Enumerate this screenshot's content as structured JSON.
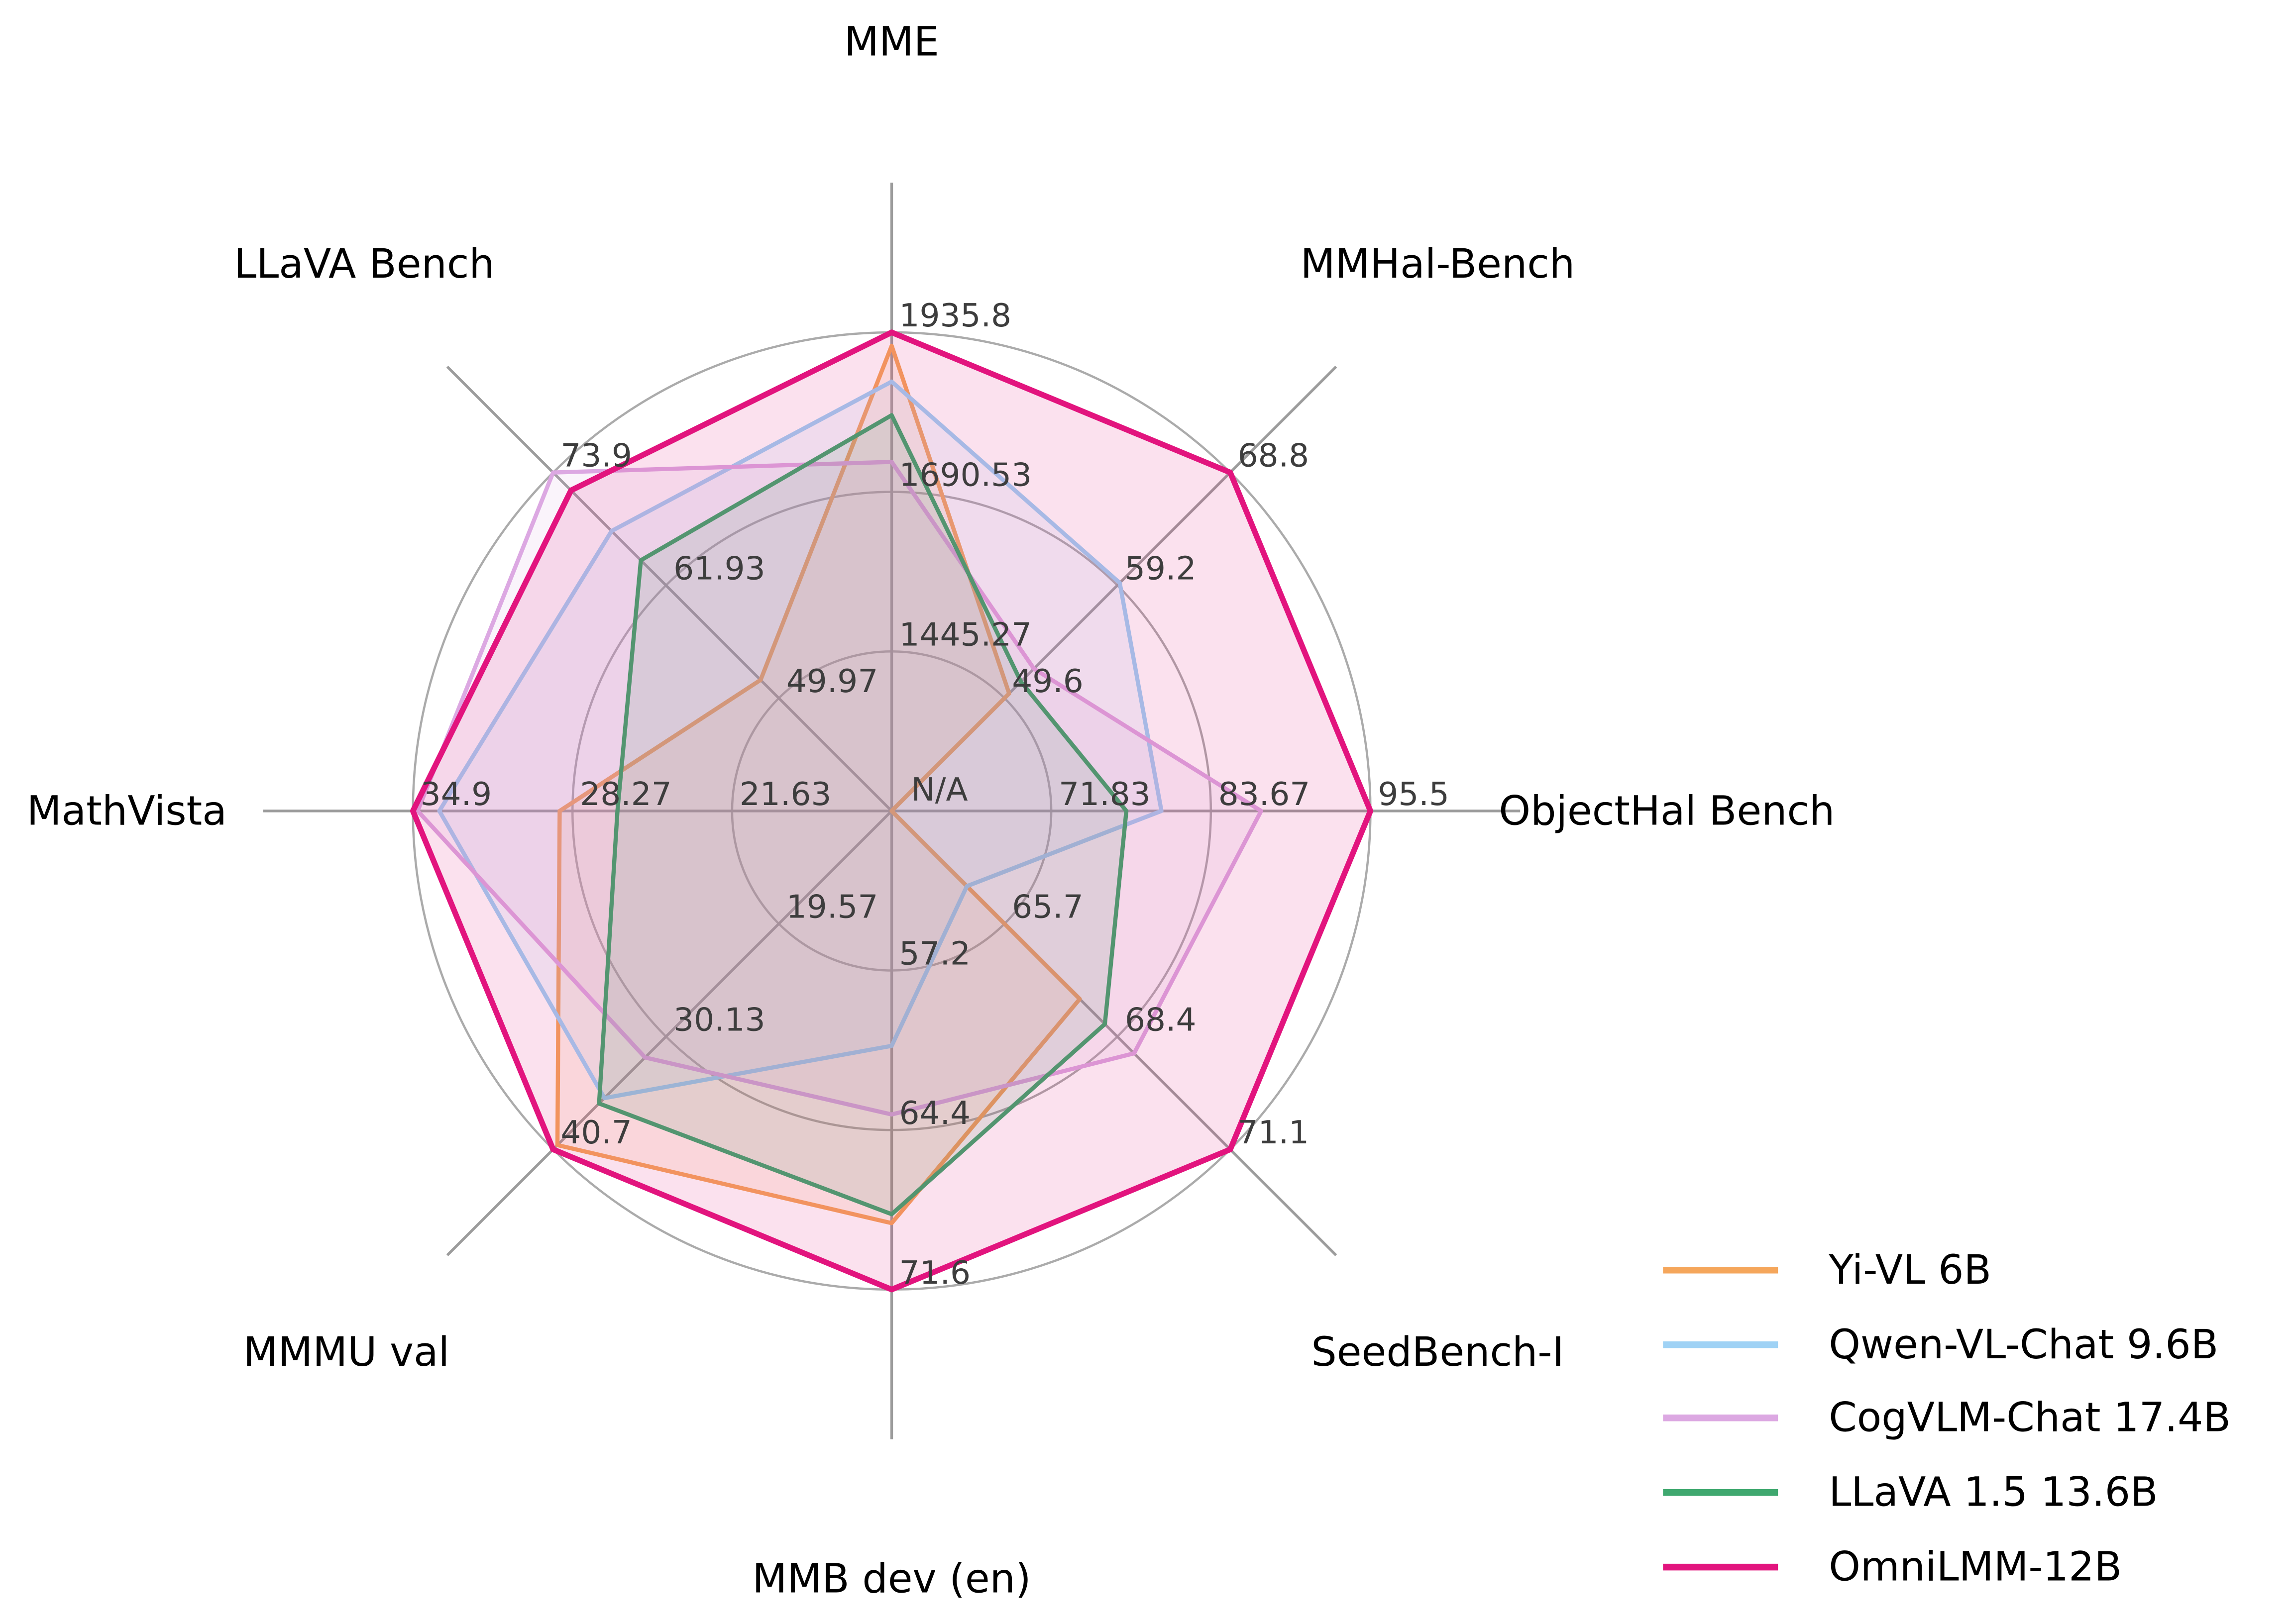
{
  "chart_data": {
    "type": "radar",
    "title": "",
    "grid": {
      "rings": 3,
      "ring_color": "#ababab",
      "spoke_color": "#9c9c9c",
      "tick_color": "#3d3d3d",
      "fill_opacity": 0.13
    },
    "axes": [
      {
        "label": "MME",
        "min": 1200,
        "max": 1935.8,
        "tick_labels": [
          "1445.27",
          "1690.53",
          "1935.8"
        ]
      },
      {
        "label": "MMHal-Bench",
        "min": 40,
        "max": 68.8,
        "tick_labels": [
          "49.6",
          "59.2",
          "68.8"
        ]
      },
      {
        "label": "ObjectHal Bench",
        "min": 60,
        "max": 95.5,
        "tick_labels": [
          "71.83",
          "83.67",
          "95.5"
        ],
        "center_label": "N/A"
      },
      {
        "label": "SeedBench-I",
        "min": 63,
        "max": 71.1,
        "tick_labels": [
          "65.7",
          "68.4",
          "71.1"
        ]
      },
      {
        "label": "MMB dev (en)",
        "min": 50,
        "max": 71.6,
        "tick_labels": [
          "57.2",
          "64.4",
          "71.6"
        ]
      },
      {
        "label": "MMMU val",
        "min": 9,
        "max": 40.7,
        "tick_labels": [
          "19.57",
          "30.13",
          "40.7"
        ]
      },
      {
        "label": "MathVista",
        "min": 15,
        "max": 34.9,
        "tick_labels": [
          "21.63",
          "28.27",
          "34.9"
        ]
      },
      {
        "label": "LLaVA Bench",
        "min": 38,
        "max": 73.9,
        "tick_labels": [
          "49.97",
          "61.93",
          "73.9"
        ]
      }
    ],
    "series": [
      {
        "name": "Yi-VL 6B",
        "color": "#F5A65B",
        "line_width": 2.8,
        "values": [
          1915.1,
          50.0,
          "N/A",
          67.5,
          68.6,
          40.3,
          28.8,
          51.9
        ]
      },
      {
        "name": "Qwen-VL-Chat 9.6B",
        "color": "#9FD2F5",
        "line_width": 2.8,
        "values": [
          1860.0,
          59.4,
          80.0,
          64.8,
          60.6,
          35.9,
          33.8,
          67.7
        ]
      },
      {
        "name": "CogVLM-Chat 17.4B",
        "color": "#DCA8E2",
        "line_width": 2.8,
        "values": [
          1736.6,
          52.1,
          87.4,
          68.8,
          63.7,
          32.1,
          34.7,
          73.9
        ]
      },
      {
        "name": "LLaVA 1.5 13.6B",
        "color": "#3FA86F",
        "line_width": 2.8,
        "values": [
          1808.4,
          51.0,
          77.4,
          68.1,
          68.2,
          36.4,
          26.4,
          64.6
        ]
      },
      {
        "name": "OmniLMM-12B",
        "color": "#E2147E",
        "line_width": 3.8,
        "values": [
          1935.8,
          68.8,
          95.5,
          71.1,
          71.6,
          40.7,
          34.9,
          72.0
        ]
      }
    ],
    "legend_position": "bottom-right"
  }
}
